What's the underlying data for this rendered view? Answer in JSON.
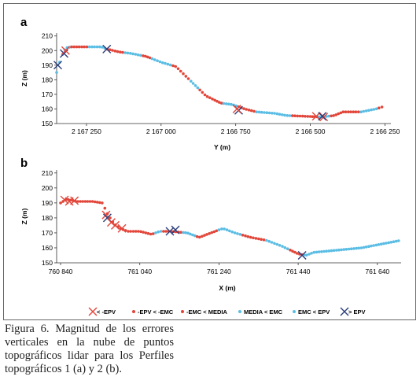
{
  "chart_data": [
    {
      "panel_label": "a",
      "type": "scatter",
      "xlabel": "Y (m)",
      "ylabel": "Z (m)",
      "x_reversed": true,
      "xlim": [
        2167350,
        2166230
      ],
      "ylim": [
        150,
        212
      ],
      "xticks": [
        2167250,
        2167000,
        2166750,
        2166500,
        2166250
      ],
      "xtick_labels": [
        "2 167 250",
        "2 167 000",
        "2 166 750",
        "2 166 500",
        "2 166 250"
      ],
      "yticks": [
        150,
        160,
        170,
        180,
        190,
        200,
        210
      ],
      "profile": [
        [
          2167350,
          185
        ],
        [
          2167340,
          192
        ],
        [
          2167325,
          200
        ],
        [
          2167315,
          202
        ],
        [
          2167300,
          202.5
        ],
        [
          2167200,
          202.5
        ],
        [
          2167180,
          201
        ],
        [
          2167140,
          199
        ],
        [
          2167100,
          198
        ],
        [
          2167050,
          196
        ],
        [
          2167000,
          192
        ],
        [
          2166950,
          189
        ],
        [
          2166920,
          183
        ],
        [
          2166880,
          175
        ],
        [
          2166850,
          169
        ],
        [
          2166800,
          164
        ],
        [
          2166760,
          163
        ],
        [
          2166720,
          160
        ],
        [
          2166680,
          158
        ],
        [
          2166620,
          157
        ],
        [
          2166580,
          155.5
        ],
        [
          2166520,
          155
        ],
        [
          2166460,
          154.5
        ],
        [
          2166420,
          155.5
        ],
        [
          2166390,
          158
        ],
        [
          2166330,
          158
        ],
        [
          2166280,
          160
        ],
        [
          2166250,
          162
        ]
      ],
      "segments": [
        {
          "from": 2167350,
          "to": 2167330,
          "class": "media_emc"
        },
        {
          "from": 2167330,
          "to": 2167300,
          "class": "media_emc"
        },
        {
          "from": 2167300,
          "to": 2167240,
          "class": "emc_media"
        },
        {
          "from": 2167240,
          "to": 2167180,
          "class": "media_emc"
        },
        {
          "from": 2167180,
          "to": 2167120,
          "class": "emc_media"
        },
        {
          "from": 2167120,
          "to": 2167060,
          "class": "media_emc"
        },
        {
          "from": 2167060,
          "to": 2167030,
          "class": "epv_emc"
        },
        {
          "from": 2167030,
          "to": 2166960,
          "class": "media_emc"
        },
        {
          "from": 2166960,
          "to": 2166900,
          "class": "emc_media"
        },
        {
          "from": 2166900,
          "to": 2166870,
          "class": "media_emc"
        },
        {
          "from": 2166870,
          "to": 2166820,
          "class": "epv_emc"
        },
        {
          "from": 2166820,
          "to": 2166790,
          "class": "emc_media"
        },
        {
          "from": 2166790,
          "to": 2166740,
          "class": "media_emc"
        },
        {
          "from": 2166740,
          "to": 2166680,
          "class": "emc_media"
        },
        {
          "from": 2166680,
          "to": 2166560,
          "class": "media_emc"
        },
        {
          "from": 2166560,
          "to": 2166500,
          "class": "emc_media"
        },
        {
          "from": 2166500,
          "to": 2166470,
          "class": "epv_emc"
        },
        {
          "from": 2166470,
          "to": 2166430,
          "class": "media_emc"
        },
        {
          "from": 2166430,
          "to": 2166390,
          "class": "emc_media"
        },
        {
          "from": 2166390,
          "to": 2166330,
          "class": "epv_emc"
        },
        {
          "from": 2166330,
          "to": 2166270,
          "class": "media_emc"
        },
        {
          "from": 2166270,
          "to": 2166250,
          "class": "epv_emc"
        }
      ],
      "markers": [
        {
          "class": "gt_epv",
          "x": 2167346,
          "y": 190
        },
        {
          "class": "gt_epv",
          "x": 2167325,
          "y": 198
        },
        {
          "class": "lt_neg_epv",
          "x": 2167320,
          "y": 200
        },
        {
          "class": "gt_epv",
          "x": 2167182,
          "y": 201
        },
        {
          "class": "gt_epv",
          "x": 2166740,
          "y": 159
        },
        {
          "class": "lt_neg_epv",
          "x": 2166746,
          "y": 160
        },
        {
          "class": "lt_neg_epv",
          "x": 2166480,
          "y": 155
        },
        {
          "class": "lt_neg_epv",
          "x": 2166455,
          "y": 154.5
        },
        {
          "class": "gt_epv",
          "x": 2166460,
          "y": 155
        }
      ]
    },
    {
      "panel_label": "b",
      "type": "scatter",
      "xlabel": "X (m)",
      "ylabel": "Z (m)",
      "xlim": [
        760830,
        761700
      ],
      "ylim": [
        150,
        212
      ],
      "xticks": [
        760840,
        761040,
        761240,
        761440,
        761640
      ],
      "xtick_labels": [
        "760 840",
        "761 040",
        "761 240",
        "761 440",
        "761 640"
      ],
      "yticks": [
        150,
        160,
        170,
        180,
        190,
        200,
        210
      ],
      "profile": [
        [
          760840,
          190
        ],
        [
          760855,
          192.5
        ],
        [
          760880,
          191
        ],
        [
          760920,
          191
        ],
        [
          760945,
          190
        ],
        [
          760960,
          182
        ],
        [
          760975,
          176
        ],
        [
          760990,
          173
        ],
        [
          761010,
          171
        ],
        [
          761040,
          171
        ],
        [
          761070,
          169
        ],
        [
          761090,
          171
        ],
        [
          761120,
          171
        ],
        [
          761160,
          170
        ],
        [
          761190,
          167
        ],
        [
          761220,
          170
        ],
        [
          761250,
          173
        ],
        [
          761280,
          170
        ],
        [
          761320,
          167
        ],
        [
          761360,
          165
        ],
        [
          761400,
          161
        ],
        [
          761440,
          156
        ],
        [
          761460,
          155
        ],
        [
          761480,
          157
        ],
        [
          761520,
          158
        ],
        [
          761560,
          159
        ],
        [
          761600,
          160
        ],
        [
          761640,
          162
        ],
        [
          761680,
          164
        ],
        [
          761700,
          165
        ]
      ],
      "segments": [
        {
          "from": 760840,
          "to": 760890,
          "class": "epv_emc"
        },
        {
          "from": 760890,
          "to": 760945,
          "class": "emc_media"
        },
        {
          "from": 760945,
          "to": 760985,
          "class": "epv_emc"
        },
        {
          "from": 760985,
          "to": 761030,
          "class": "emc_media"
        },
        {
          "from": 761030,
          "to": 761080,
          "class": "epv_emc"
        },
        {
          "from": 761080,
          "to": 761100,
          "class": "media_emc"
        },
        {
          "from": 761100,
          "to": 761150,
          "class": "emc_media"
        },
        {
          "from": 761150,
          "to": 761185,
          "class": "media_emc"
        },
        {
          "from": 761185,
          "to": 761240,
          "class": "emc_media"
        },
        {
          "from": 761240,
          "to": 761300,
          "class": "media_emc"
        },
        {
          "from": 761300,
          "to": 761360,
          "class": "emc_media"
        },
        {
          "from": 761360,
          "to": 761420,
          "class": "media_emc"
        },
        {
          "from": 761420,
          "to": 761455,
          "class": "emc_media"
        },
        {
          "from": 761455,
          "to": 761700,
          "class": "emc_epv"
        }
      ],
      "markers": [
        {
          "class": "lt_neg_epv",
          "x": 760850,
          "y": 192
        },
        {
          "class": "lt_neg_epv",
          "x": 760862,
          "y": 191
        },
        {
          "class": "lt_neg_epv",
          "x": 760875,
          "y": 191.5
        },
        {
          "class": "lt_neg_epv",
          "x": 760955,
          "y": 182
        },
        {
          "class": "gt_epv",
          "x": 760958,
          "y": 180
        },
        {
          "class": "lt_neg_epv",
          "x": 760968,
          "y": 177
        },
        {
          "class": "lt_neg_epv",
          "x": 760978,
          "y": 175
        },
        {
          "class": "lt_neg_epv",
          "x": 760995,
          "y": 173
        },
        {
          "class": "gt_epv",
          "x": 761116,
          "y": 171
        },
        {
          "class": "gt_epv",
          "x": 761130,
          "y": 172
        },
        {
          "class": "gt_epv",
          "x": 761450,
          "y": 155
        }
      ]
    }
  ],
  "legend": [
    {
      "key": "lt_neg_epv",
      "label": "< -EPV",
      "marker": "x",
      "color": "#e2463a"
    },
    {
      "key": "epv_emc",
      "label": "-EPV < -EMC",
      "marker": "dot",
      "color": "#e2463a"
    },
    {
      "key": "emc_media",
      "label": "-EMC < MEDIA",
      "marker": "dot",
      "color": "#e2463a"
    },
    {
      "key": "media_emc",
      "label": "MEDIA < EMC",
      "marker": "dot",
      "color": "#5bbde4"
    },
    {
      "key": "emc_epv",
      "label": "EMC < EPV",
      "marker": "dot",
      "color": "#5bbde4"
    },
    {
      "key": "gt_epv",
      "label": "> EPV",
      "marker": "x",
      "color": "#2c3e7a"
    }
  ],
  "caption": "Figura 6. Magnitud de los errores verticales en la nube de puntos topográficos lidar para los Perfiles topográficos 1 (a) y 2 (b)."
}
